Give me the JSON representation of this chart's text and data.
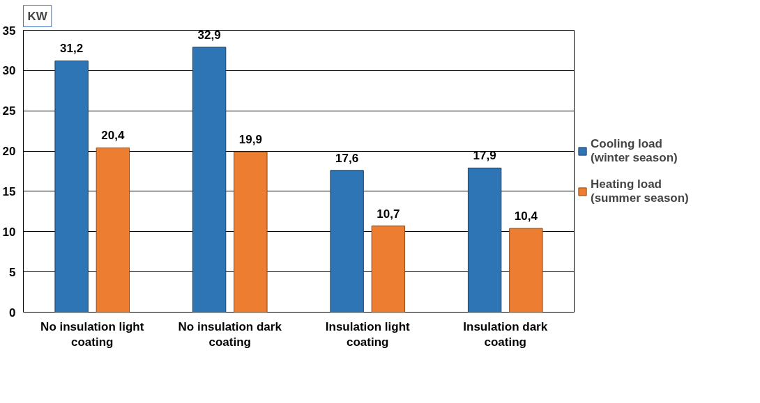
{
  "chart_data": {
    "type": "bar",
    "ylabel": "KW",
    "categories": [
      "No insulation light coating",
      "No insulation dark coating",
      "Insulation light coating",
      "Insulation dark coating"
    ],
    "series": [
      {
        "name": "Cooling load (winter season)",
        "color": "#2e75b6",
        "values": [
          31.2,
          32.9,
          17.6,
          17.9
        ],
        "value_labels": [
          "31,2",
          "32,9",
          "17,6",
          "17,9"
        ]
      },
      {
        "name": "Heating load (summer season)",
        "color": "#ed7d31",
        "values": [
          20.4,
          19.9,
          10.7,
          10.4
        ],
        "value_labels": [
          "20,4",
          "19,9",
          "10,7",
          "10,4"
        ]
      }
    ],
    "ylim": [
      0,
      35
    ],
    "yticks": [
      0,
      5,
      10,
      15,
      20,
      25,
      30,
      35
    ],
    "grid": "y",
    "legend": "right"
  }
}
